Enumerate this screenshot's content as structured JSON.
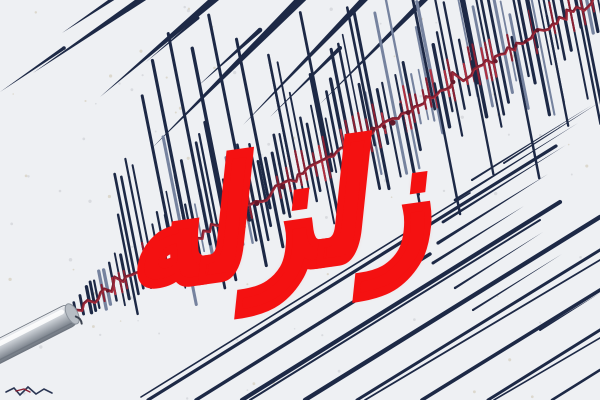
{
  "overlay": {
    "text": "زلزله"
  },
  "colors": {
    "background": "#eef0f3",
    "speckle": "#d6d8dd",
    "speckle_warm": "#d9d5c9",
    "trace_navy": "#1d2946",
    "trace_navy_light": "#76839f",
    "ink_red_dark": "#7d1f30",
    "ink_red": "#8a2033",
    "ink_red_bright": "#b03040",
    "overlay_red": "#f41111",
    "pen_light": "#f0f2f5",
    "pen_mid": "#c7ccd2",
    "pen_dark": "#868d96",
    "pen_edge": "#6d747e"
  }
}
